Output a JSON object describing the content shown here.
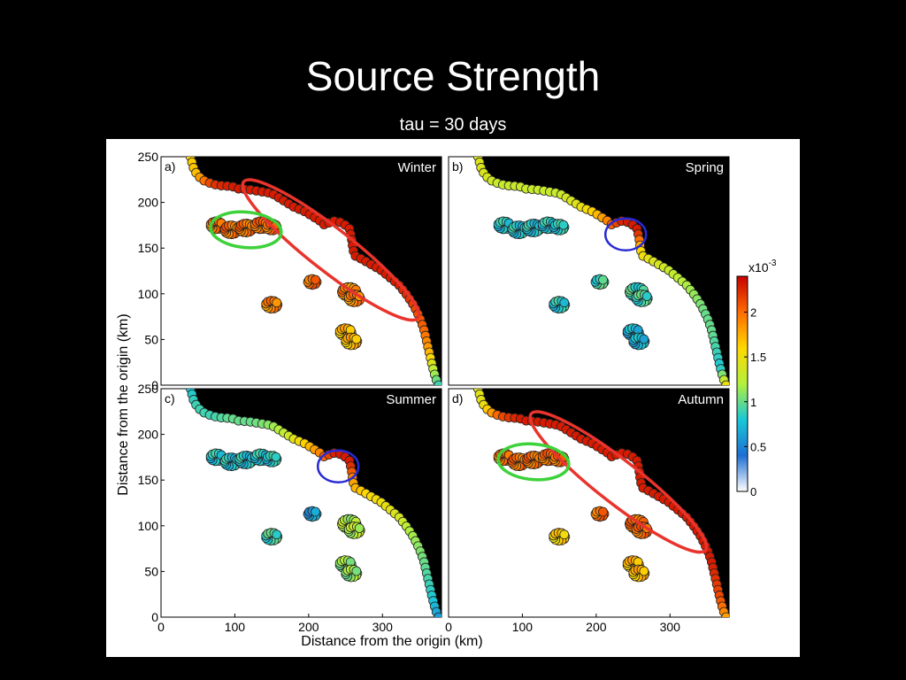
{
  "slide": {
    "title": "Source Strength",
    "subtitle": "tau = 30 days"
  },
  "figure": {
    "xlabel": "Distance from the origin (km)",
    "ylabel": "Distance from the origin (km)",
    "x_ticks": [
      "0",
      "100",
      "200",
      "300"
    ],
    "y_ticks": [
      "0",
      "50",
      "100",
      "150",
      "200",
      "250"
    ],
    "colorbar": {
      "exponent_label": "x10",
      "exponent": "-3",
      "tick_labels": [
        "0",
        "0.5",
        "1",
        "1.5",
        "2"
      ],
      "range": [
        0,
        2.4
      ],
      "stops": [
        "#ffffff",
        "#1e6fd4",
        "#19c8d8",
        "#b4f03c",
        "#ffd800",
        "#ff6a00",
        "#c80000"
      ]
    },
    "background_color": "#000000",
    "marker_edge_color": "#222222",
    "ellipse_colors": {
      "red": "#e8342c",
      "green": "#3ed23a",
      "blue": "#2a2ad4"
    }
  },
  "chart_data": [
    {
      "type": "scatter",
      "panel_label": "a)",
      "title": "Winter",
      "xlim": [
        0,
        380
      ],
      "ylim": [
        0,
        250
      ],
      "coastline_values": [
        1.6,
        1.7,
        2.2,
        2.3,
        2.3,
        2.3,
        2.3,
        2.3,
        2.3,
        2.3,
        2.3,
        2.3,
        2.3,
        2.3,
        2.3,
        2.2,
        2.1,
        2.0,
        1.8,
        1.3,
        0.9
      ],
      "cluster_values": {
        "west_island": 2.0,
        "mid_small": 1.9,
        "mid_small_2": 2.0,
        "east_upper": 1.9,
        "east_lower": 1.7
      },
      "annotations": [
        "red-ellipse",
        "green-ellipse"
      ]
    },
    {
      "type": "scatter",
      "panel_label": "b)",
      "title": "Spring",
      "xlim": [
        0,
        380
      ],
      "ylim": [
        0,
        250
      ],
      "coastline_values": [
        1.4,
        1.4,
        1.3,
        1.3,
        1.3,
        1.3,
        1.4,
        1.6,
        1.9,
        2.3,
        2.3,
        1.6,
        1.4,
        1.3,
        1.2,
        1.1,
        1.0,
        1.0,
        0.9,
        0.8,
        1.5
      ],
      "cluster_values": {
        "west_island": 0.8,
        "mid_small": 0.8,
        "mid_small_2": 0.9,
        "east_upper": 0.9,
        "east_lower": 0.7
      },
      "annotations": [
        "blue-ellipse"
      ]
    },
    {
      "type": "scatter",
      "panel_label": "c)",
      "title": "Summer",
      "xlim": [
        0,
        380
      ],
      "ylim": [
        0,
        250
      ],
      "coastline_values": [
        0.8,
        0.9,
        0.9,
        1.0,
        1.0,
        1.1,
        1.3,
        1.6,
        1.9,
        2.3,
        2.3,
        1.8,
        1.6,
        1.5,
        1.4,
        1.2,
        1.1,
        1.0,
        0.9,
        0.8,
        0.6
      ],
      "cluster_values": {
        "west_island": 0.8,
        "mid_small": 0.9,
        "mid_small_2": 0.6,
        "east_upper": 1.2,
        "east_lower": 1.1
      },
      "annotations": [
        "blue-ellipse"
      ]
    },
    {
      "type": "scatter",
      "panel_label": "d)",
      "title": "Autumn",
      "xlim": [
        0,
        380
      ],
      "ylim": [
        0,
        250
      ],
      "coastline_values": [
        1.4,
        1.5,
        2.1,
        2.3,
        2.3,
        2.3,
        2.3,
        2.3,
        2.3,
        2.3,
        2.3,
        2.3,
        2.3,
        2.3,
        2.3,
        2.3,
        2.3,
        2.3,
        2.2,
        2.1,
        1.8
      ],
      "cluster_values": {
        "west_island": 2.0,
        "mid_small": 1.6,
        "mid_small_2": 2.0,
        "east_upper": 2.0,
        "east_lower": 1.7
      },
      "annotations": [
        "red-ellipse",
        "green-ellipse"
      ]
    }
  ]
}
